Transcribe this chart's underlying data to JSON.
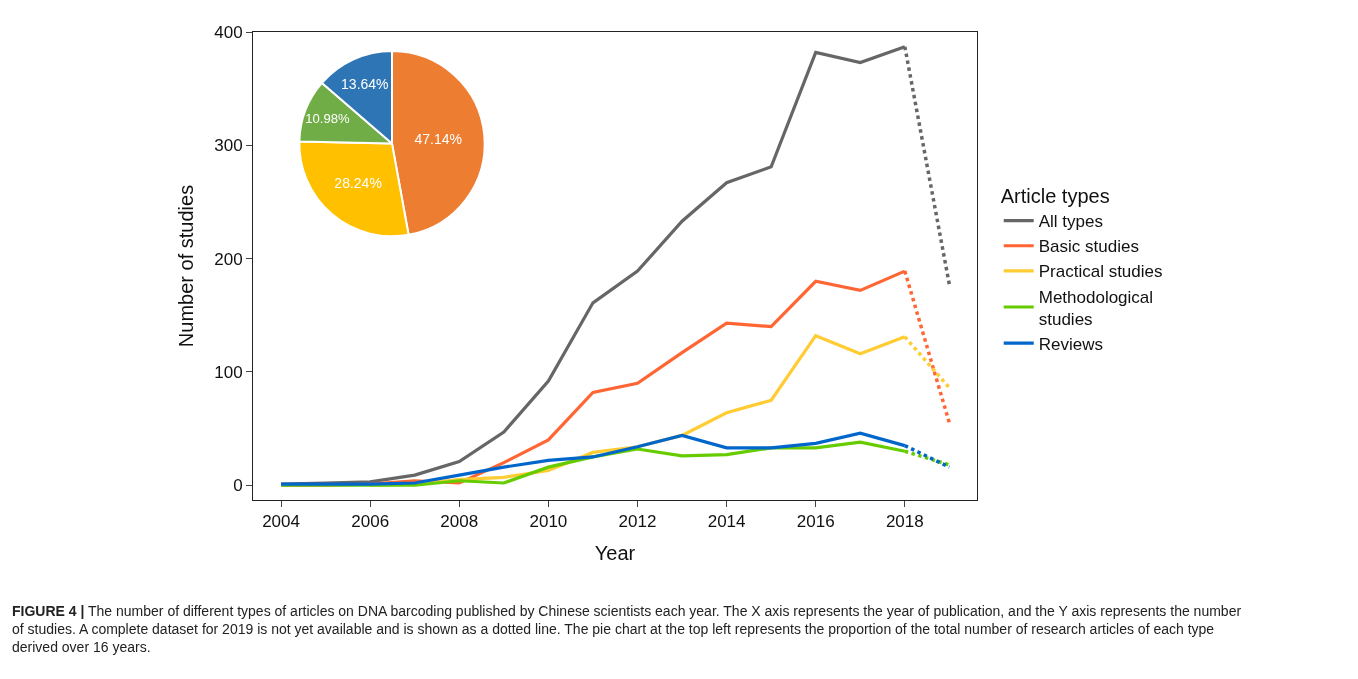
{
  "chart_data": [
    {
      "type": "line",
      "xlabel": "Year",
      "ylabel": "Number of studies",
      "legend_title": "Article types",
      "legend": "right",
      "grid": false,
      "line_style": "solid",
      "marker": "none",
      "x": [
        2004,
        2005,
        2006,
        2007,
        2008,
        2009,
        2010,
        2011,
        2012,
        2013,
        2014,
        2015,
        2016,
        2017,
        2018,
        2019
      ],
      "xlim": [
        2003.37,
        2019.62
      ],
      "xticks": [
        2004,
        2006,
        2008,
        2010,
        2012,
        2014,
        2016,
        2018
      ],
      "ylim": [
        -13,
        400
      ],
      "yticks": [
        0,
        100,
        200,
        300,
        400
      ],
      "series": [
        {
          "name": "All types",
          "color": "#666666",
          "values": [
            1,
            2,
            3,
            9,
            21,
            47,
            92,
            161,
            189,
            233,
            267,
            281,
            382,
            373,
            387,
            null
          ]
        },
        {
          "name": "Basic studies",
          "color": "#ff6633",
          "values": [
            0,
            0,
            1,
            4,
            2,
            20,
            40,
            82,
            90,
            117,
            143,
            140,
            180,
            172,
            189,
            null
          ]
        },
        {
          "name": "Practical studies",
          "color": "#ffcc33",
          "values": [
            null,
            null,
            0,
            1,
            5,
            7,
            13,
            29,
            34,
            44,
            64,
            75,
            132,
            116,
            131,
            null
          ]
        },
        {
          "name": "Methodological studies",
          "color": "#66cc00",
          "values": [
            0,
            0,
            0,
            0,
            4,
            2,
            16,
            25,
            32,
            26,
            27,
            33,
            33,
            38,
            30,
            null
          ]
        },
        {
          "name": "Reviews",
          "color": "#0066cc",
          "values": [
            1,
            1,
            1,
            2,
            9,
            16,
            22,
            25,
            34,
            44,
            33,
            33,
            37,
            46,
            35,
            null
          ]
        },
        {
          "color": "#666666",
          "values": [
            null,
            null,
            null,
            null,
            null,
            null,
            null,
            null,
            null,
            null,
            null,
            null,
            null,
            null,
            387,
            177
          ],
          "line_style": "dotted"
        },
        {
          "color": "#ff6633",
          "values": [
            null,
            null,
            null,
            null,
            null,
            null,
            null,
            null,
            null,
            null,
            null,
            null,
            null,
            null,
            189,
            55
          ],
          "line_style": "dotted"
        },
        {
          "color": "#ffcc33",
          "values": [
            null,
            null,
            null,
            null,
            null,
            null,
            null,
            null,
            null,
            null,
            null,
            null,
            null,
            null,
            131,
            86
          ],
          "line_style": "dotted"
        },
        {
          "color": "#66cc00",
          "values": [
            null,
            null,
            null,
            null,
            null,
            null,
            null,
            null,
            null,
            null,
            null,
            null,
            null,
            null,
            30,
            18
          ],
          "line_style": "dotted"
        },
        {
          "color": "#0066cc",
          "values": [
            null,
            null,
            null,
            null,
            null,
            null,
            null,
            null,
            null,
            null,
            null,
            null,
            null,
            null,
            35,
            16
          ],
          "line_style": "dotted"
        }
      ],
      "annotations": [
        "FIGURE 4 | The number of different types of articles on DNA barcoding published by Chinese scientists each year. The X axis represents the year of publication, and the Y axis represents the number of studies. A complete dataset for 2019 is not yet available and is shown as a dotted line. The pie chart at the top left represents the proportion of the total number of research articles of each type derived over 16 years."
      ]
    },
    {
      "type": "pie",
      "categories": [
        null,
        null,
        null,
        null
      ],
      "values": [
        47.14,
        28.24,
        10.98,
        13.64
      ],
      "colors": [
        "#ed7d31",
        "#ffc000",
        "#70ad47",
        "#2e75b6"
      ],
      "value_labels": [
        "47.14%",
        "28.24%",
        "10.98%",
        "13.64%"
      ],
      "legend": false
    }
  ]
}
